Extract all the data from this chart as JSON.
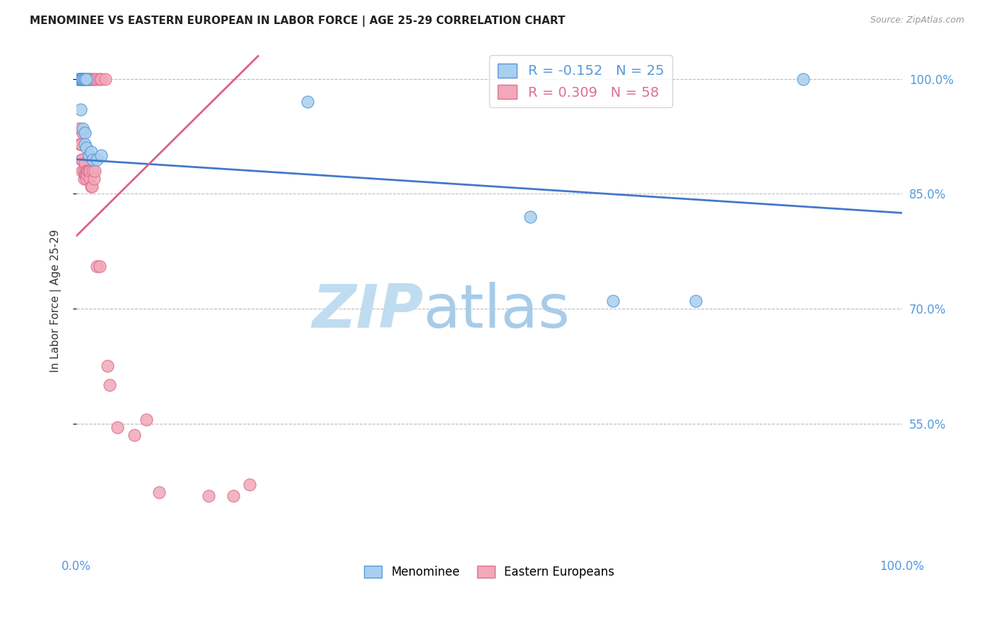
{
  "title": "MENOMINEE VS EASTERN EUROPEAN IN LABOR FORCE | AGE 25-29 CORRELATION CHART",
  "source": "Source: ZipAtlas.com",
  "ylabel": "In Labor Force | Age 25-29",
  "blue_R": -0.152,
  "blue_N": 25,
  "pink_R": 0.309,
  "pink_N": 58,
  "blue_fill": "#A8CFEE",
  "pink_fill": "#F2A8B8",
  "blue_edge": "#5599DD",
  "pink_edge": "#DD7090",
  "blue_line_color": "#4477CC",
  "pink_line_color": "#DD6080",
  "ytick_vals": [
    0.55,
    0.7,
    0.85,
    1.0
  ],
  "ytick_labels": [
    "55.0%",
    "70.0%",
    "85.0%",
    "100.0%"
  ],
  "xlim": [
    0.0,
    1.0
  ],
  "ylim": [
    0.38,
    1.04
  ],
  "tick_color": "#5599DD",
  "watermark_color": "#C8E0F4",
  "background_color": "#FFFFFF",
  "menominee_x": [
    0.005,
    0.008,
    0.01,
    0.01,
    0.012,
    0.015,
    0.018,
    0.02,
    0.025,
    0.03,
    0.55,
    0.65,
    0.75,
    0.88,
    0.002,
    0.003,
    0.004,
    0.005,
    0.006,
    0.007,
    0.008,
    0.009,
    0.01,
    0.012,
    0.28
  ],
  "menominee_y": [
    0.96,
    0.935,
    0.93,
    0.915,
    0.91,
    0.9,
    0.905,
    0.895,
    0.895,
    0.9,
    0.82,
    0.71,
    0.71,
    1.0,
    1.0,
    1.0,
    1.0,
    1.0,
    1.0,
    1.0,
    1.0,
    1.0,
    1.0,
    1.0,
    0.97
  ],
  "eastern_x": [
    0.003,
    0.004,
    0.005,
    0.006,
    0.006,
    0.007,
    0.007,
    0.008,
    0.009,
    0.009,
    0.01,
    0.01,
    0.011,
    0.012,
    0.012,
    0.013,
    0.013,
    0.014,
    0.015,
    0.016,
    0.016,
    0.018,
    0.019,
    0.02,
    0.021,
    0.022,
    0.025,
    0.028,
    0.003,
    0.004,
    0.005,
    0.006,
    0.007,
    0.008,
    0.009,
    0.01,
    0.011,
    0.012,
    0.013,
    0.014,
    0.015,
    0.016,
    0.018,
    0.02,
    0.022,
    0.025,
    0.028,
    0.03,
    0.035,
    0.038,
    0.04,
    0.05,
    0.07,
    0.085,
    0.1,
    0.16,
    0.19,
    0.21
  ],
  "eastern_y": [
    0.935,
    0.915,
    0.915,
    0.915,
    0.895,
    0.895,
    0.88,
    0.93,
    0.88,
    0.87,
    0.89,
    0.875,
    0.875,
    0.88,
    0.87,
    0.88,
    0.875,
    0.88,
    0.88,
    0.87,
    0.88,
    0.86,
    0.86,
    0.88,
    0.87,
    0.88,
    0.755,
    0.755,
    1.0,
    1.0,
    1.0,
    1.0,
    1.0,
    1.0,
    1.0,
    1.0,
    1.0,
    1.0,
    1.0,
    1.0,
    1.0,
    1.0,
    1.0,
    1.0,
    1.0,
    1.0,
    1.0,
    1.0,
    1.0,
    0.625,
    0.6,
    0.545,
    0.535,
    0.555,
    0.46,
    0.455,
    0.455,
    0.47
  ]
}
